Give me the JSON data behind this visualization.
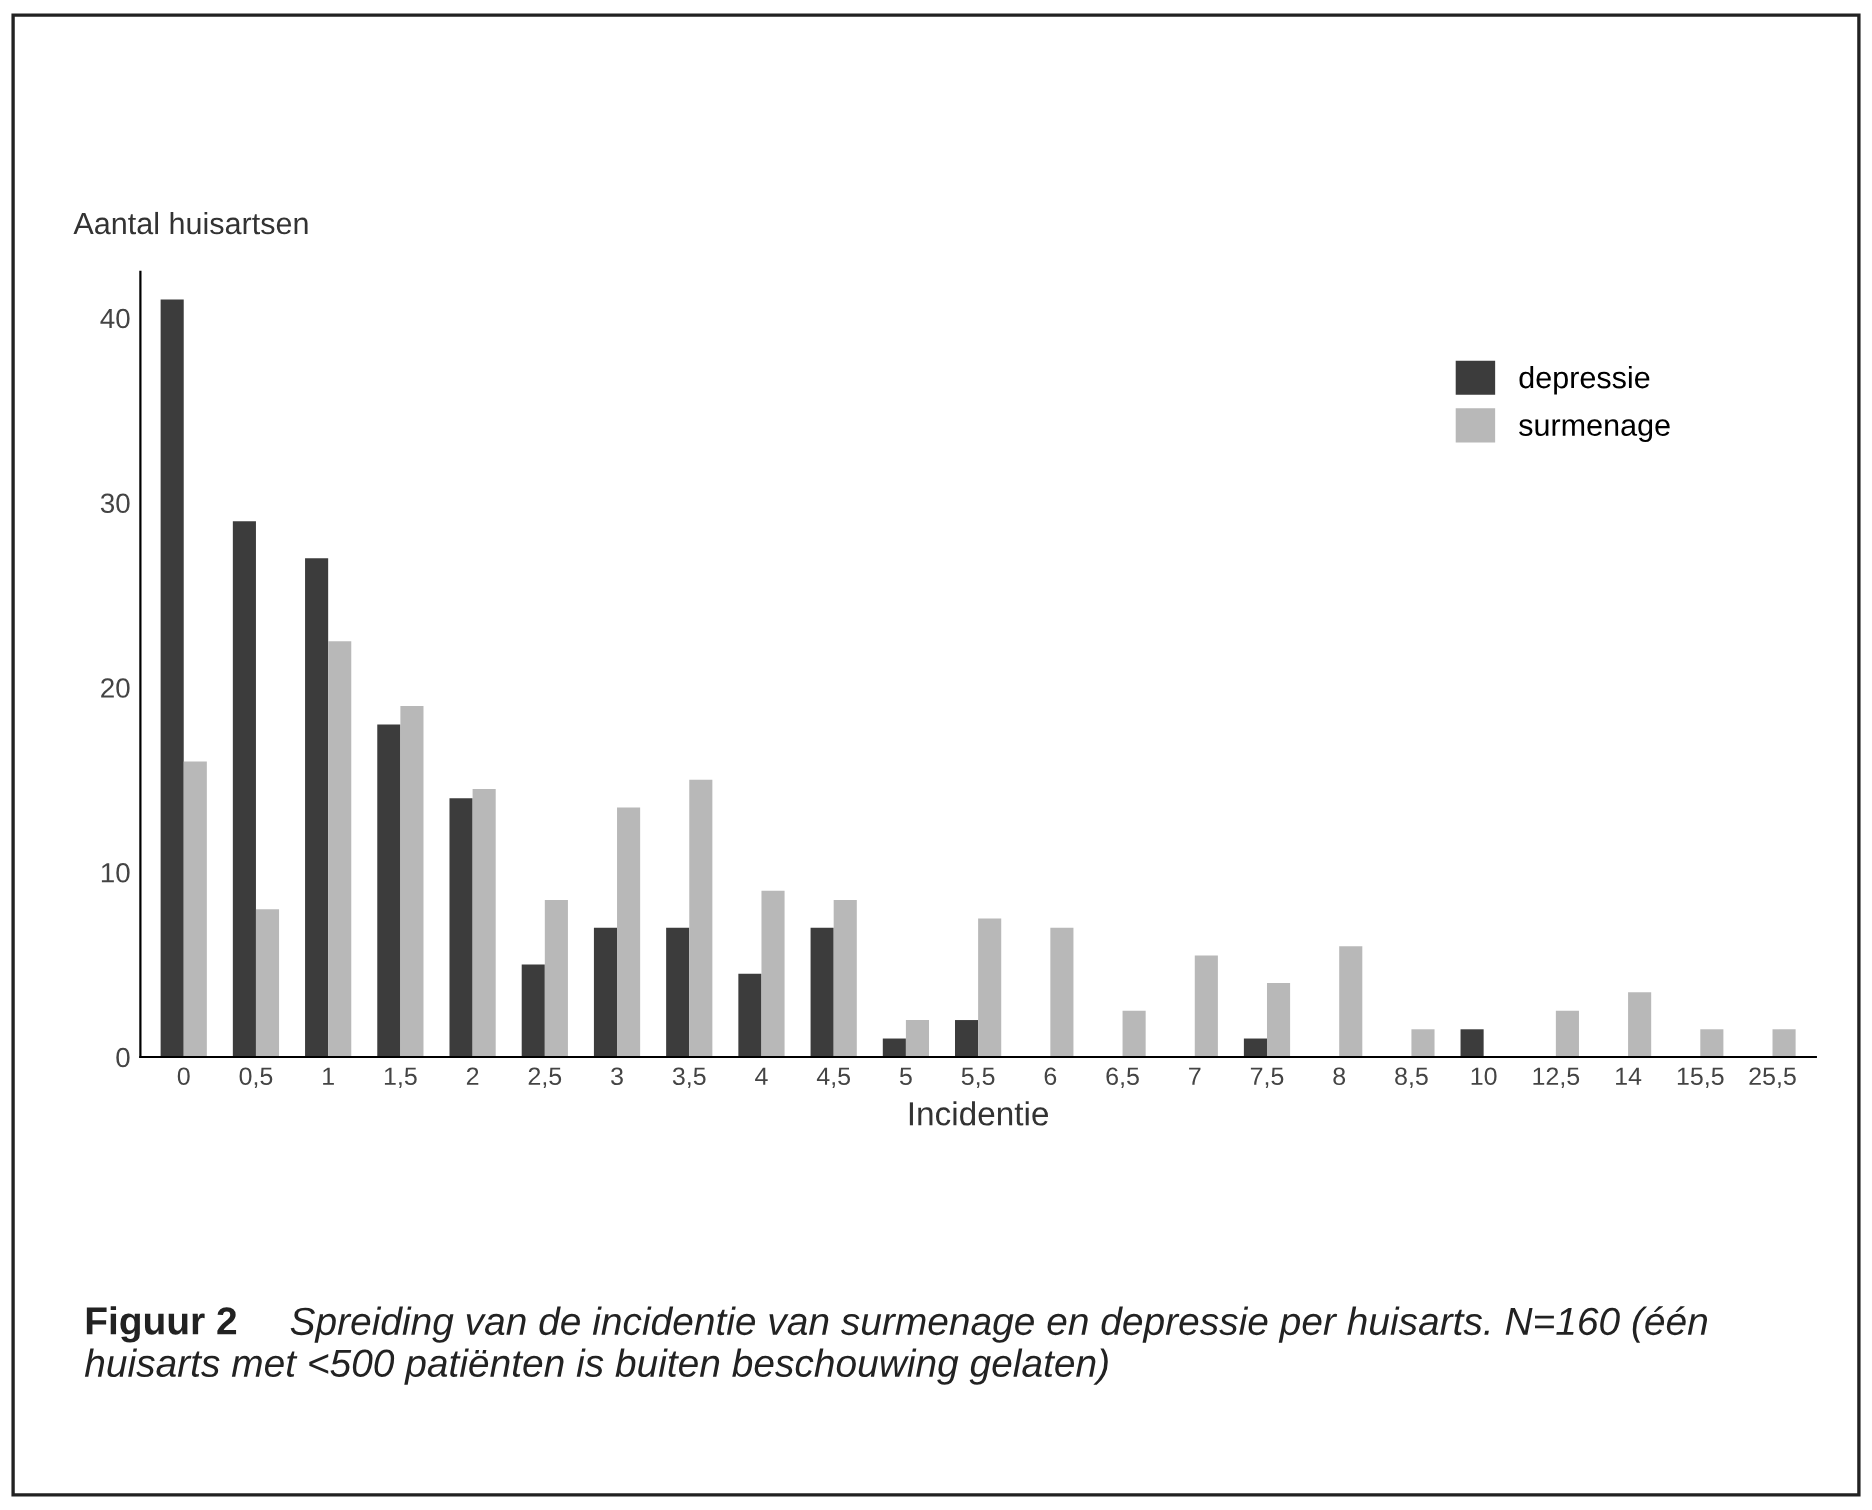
{
  "chart_data": {
    "type": "bar",
    "ylabel": "Aantal huisartsen",
    "xlabel": "Incidentie",
    "categories": [
      "0",
      "0,5",
      "1",
      "1,5",
      "2",
      "2,5",
      "3",
      "3,5",
      "4",
      "4,5",
      "5",
      "5,5",
      "6",
      "6,5",
      "7",
      "7,5",
      "8",
      "8,5",
      "10",
      "12,5",
      "14",
      "15,5",
      "25,5"
    ],
    "series": [
      {
        "name": "depressie",
        "color": "#3c3c3c",
        "values": [
          41,
          29,
          27,
          18,
          14,
          5,
          7,
          7,
          4.5,
          7,
          1,
          2,
          null,
          null,
          null,
          1,
          null,
          null,
          1.5,
          null,
          null,
          null,
          null
        ]
      },
      {
        "name": "surmenage",
        "color": "#b8b8b8",
        "values": [
          16,
          8,
          22.5,
          19,
          14.5,
          8.5,
          13.5,
          15,
          9,
          8.5,
          2,
          7.5,
          7,
          2.5,
          5.5,
          4,
          6,
          1.5,
          null,
          2.5,
          3.5,
          1.5,
          1.5
        ]
      }
    ],
    "ylim": [
      0,
      42.5
    ],
    "yticks": [
      0,
      10,
      20,
      30,
      40
    ],
    "grid": false,
    "legend": "top right",
    "annotations": [
      "Figuur 2",
      "Spreiding van de incidentie van surmenage en depressie per huisarts. N=160 (één huisarts met <500 patiënten is buiten beschouwing gelaten)"
    ]
  }
}
